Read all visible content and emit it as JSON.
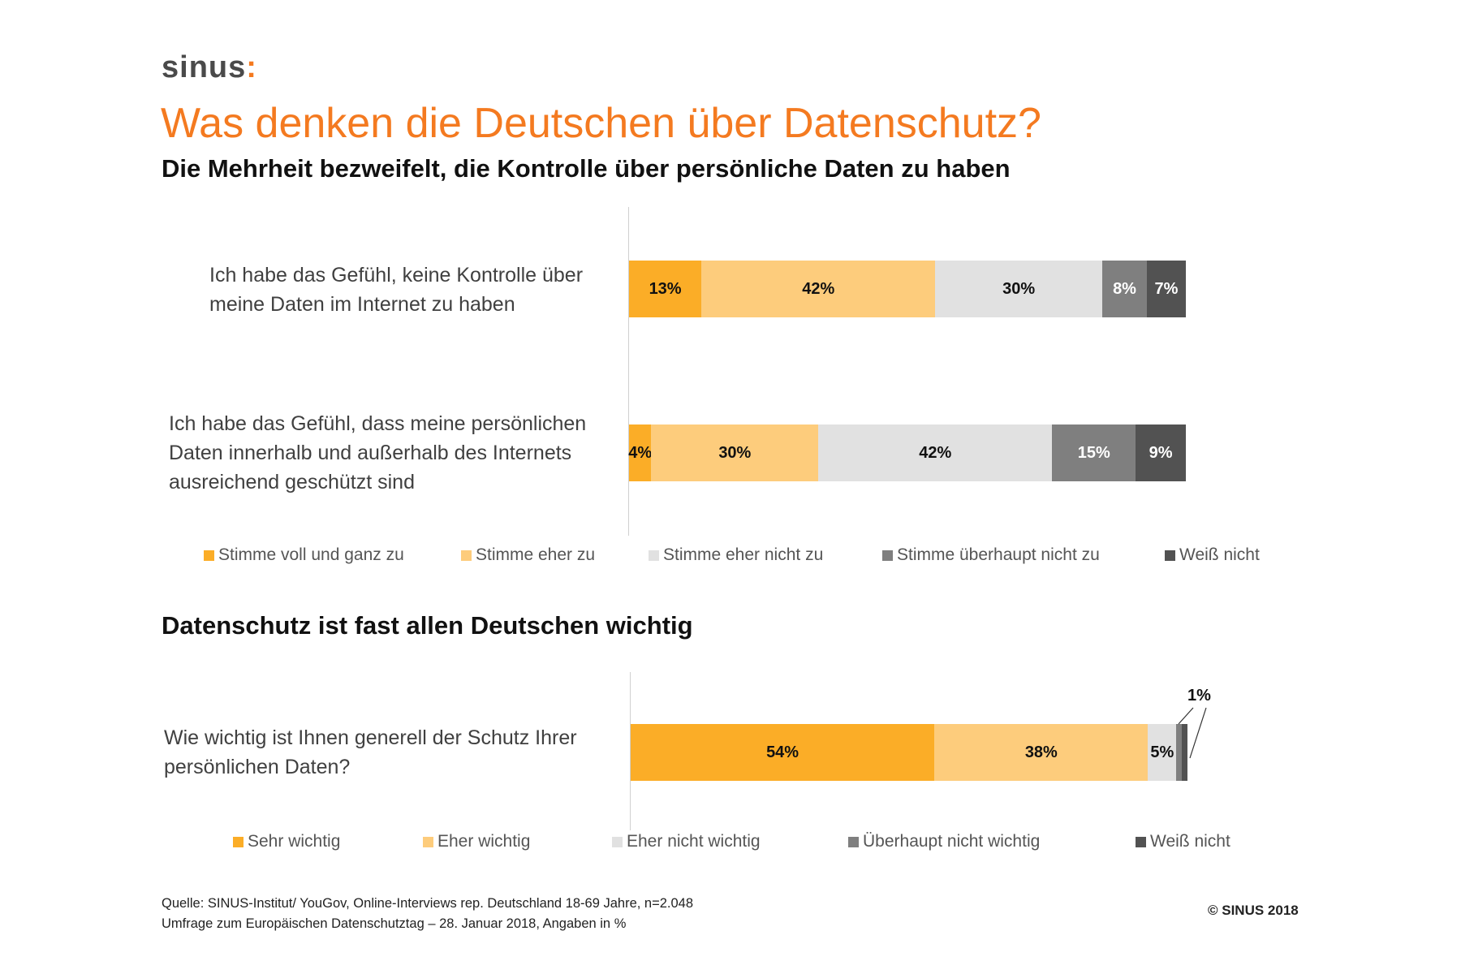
{
  "logo": {
    "text": "sinus",
    "mark": ":"
  },
  "title": "Was denken die Deutschen über Datenschutz?",
  "colors": {
    "title": "#f47a20",
    "c1": "#fbad27",
    "c2": "#fdcc7c",
    "c3": "#e1e1e1",
    "c4": "#7f7f7f",
    "c5": "#525252"
  },
  "chart_data": [
    {
      "type": "bar",
      "orientation": "horizontal-stacked-100",
      "title": "Die Mehrheit bezweifelt, die Kontrolle über persönliche Daten zu haben",
      "categories": [
        "Ich habe das Gefühl, keine Kontrolle über meine Daten im Internet zu haben",
        "Ich habe das Gefühl, dass meine persönlichen Daten innerhalb und außerhalb des Internets ausreichend geschützt sind"
      ],
      "series": [
        {
          "name": "Stimme voll und ganz zu",
          "values": [
            13,
            4
          ],
          "labels": [
            "13%",
            "4%"
          ]
        },
        {
          "name": "Stimme eher zu",
          "values": [
            42,
            30
          ],
          "labels": [
            "42%",
            "30%"
          ]
        },
        {
          "name": "Stimme eher nicht zu",
          "values": [
            30,
            42
          ],
          "labels": [
            "30%",
            "42%"
          ]
        },
        {
          "name": "Stimme überhaupt nicht zu",
          "values": [
            8,
            15
          ],
          "labels": [
            "8%",
            "15%"
          ]
        },
        {
          "name": "Weiß nicht",
          "values": [
            7,
            9
          ],
          "labels": [
            "7%",
            "9%"
          ]
        }
      ],
      "legend": "bottom",
      "unit": "%"
    },
    {
      "type": "bar",
      "orientation": "horizontal-stacked-100",
      "title": "Datenschutz ist fast allen Deutschen wichtig",
      "categories": [
        "Wie wichtig ist Ihnen generell der Schutz Ihrer persönlichen Daten?"
      ],
      "series": [
        {
          "name": "Sehr wichtig",
          "values": [
            54
          ],
          "labels": [
            "54%"
          ]
        },
        {
          "name": "Eher wichtig",
          "values": [
            38
          ],
          "labels": [
            "38%"
          ]
        },
        {
          "name": "Eher nicht wichtig",
          "values": [
            5
          ],
          "labels": [
            "5%"
          ]
        },
        {
          "name": "Überhaupt nicht wichtig",
          "values": [
            1
          ],
          "labels": [
            ""
          ]
        },
        {
          "name": "Weiß nicht",
          "values": [
            1
          ],
          "labels": [
            ""
          ]
        }
      ],
      "callout": "1%",
      "legend": "bottom",
      "unit": "%"
    }
  ],
  "footer": {
    "source": "Quelle: SINUS-Institut/ YouGov, Online-Interviews rep. Deutschland 18-69 Jahre, n=2.048",
    "note": "Umfrage zum Europäischen Datenschutztag – 28. Januar 2018, Angaben in %",
    "copyright": "© SINUS 2018"
  }
}
